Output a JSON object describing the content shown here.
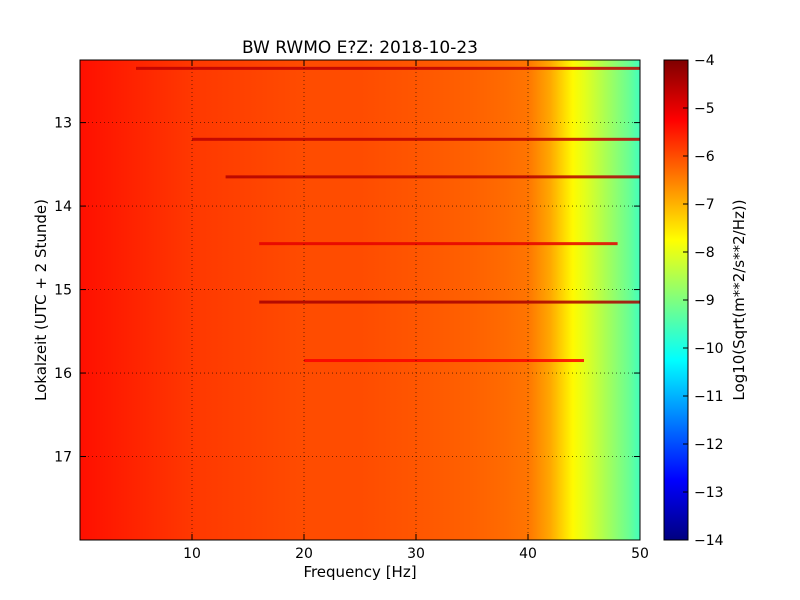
{
  "chart_data": {
    "type": "heatmap",
    "title": "BW RWMO E?Z: 2018-10-23",
    "xlabel": "Frequency [Hz]",
    "ylabel": "Lokalzeit (UTC + 2 Stunde)",
    "xlim": [
      0,
      50
    ],
    "ylim": [
      12.25,
      18.0
    ],
    "y_inverted": true,
    "x_ticks": [
      10,
      20,
      30,
      40,
      50
    ],
    "y_ticks": [
      13,
      14,
      15,
      16,
      17
    ],
    "grid": true,
    "colormap": "jet",
    "colorbar": {
      "label": "Log10(Sqrt(m**2/s**2/Hz))",
      "range": [
        -14,
        -4
      ],
      "ticks": [
        -4,
        -5,
        -6,
        -7,
        -8,
        -9,
        -10,
        -11,
        -12,
        -13,
        -14
      ]
    },
    "spectral_profile": {
      "frequency_hz": [
        0,
        5,
        10,
        15,
        20,
        25,
        30,
        35,
        38,
        40,
        42,
        43,
        44,
        45,
        46,
        47,
        48,
        49,
        50
      ],
      "log10_amplitude": [
        -5.4,
        -5.6,
        -5.8,
        -5.9,
        -6.0,
        -6.0,
        -6.1,
        -6.2,
        -6.3,
        -6.4,
        -6.9,
        -7.3,
        -7.7,
        -8.0,
        -8.3,
        -8.6,
        -8.9,
        -9.2,
        -9.6
      ]
    },
    "strong_bands": [
      {
        "time": 12.35,
        "f_start": 5,
        "f_end": 50,
        "level": -4.6
      },
      {
        "time": 13.2,
        "f_start": 10,
        "f_end": 50,
        "level": -4.6
      },
      {
        "time": 13.65,
        "f_start": 13,
        "f_end": 50,
        "level": -4.5
      },
      {
        "time": 14.45,
        "f_start": 16,
        "f_end": 48,
        "level": -5.0
      },
      {
        "time": 15.15,
        "f_start": 16,
        "f_end": 50,
        "level": -4.4
      },
      {
        "time": 15.85,
        "f_start": 20,
        "f_end": 45,
        "level": -5.2
      }
    ],
    "colors": {
      "jet": [
        "#00007f",
        "#0000ff",
        "#007fff",
        "#00ffff",
        "#7fff7f",
        "#ffff00",
        "#ff7f00",
        "#ff0000",
        "#7f0000"
      ]
    }
  }
}
